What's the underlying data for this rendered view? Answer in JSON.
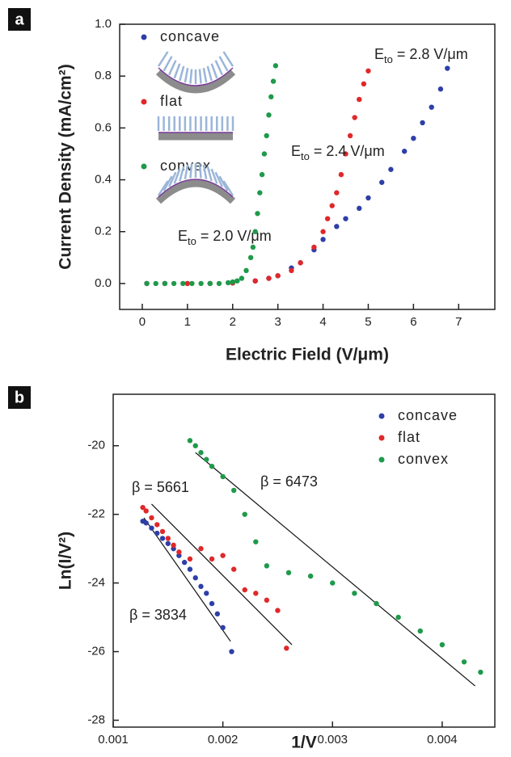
{
  "chart_data": [
    {
      "type": "scatter",
      "panel_label": "a",
      "xlabel": "Electric Field (V/μm)",
      "ylabel": "Current Density (mA/cm²)",
      "xlim": [
        -0.5,
        7.8
      ],
      "xticks": [
        0,
        1,
        2,
        3,
        4,
        5,
        6,
        7
      ],
      "ylim": [
        -0.1,
        1.0
      ],
      "yticks": [
        {
          "value": 0,
          "label": "0.0"
        },
        {
          "value": 0.2,
          "label": "0.2"
        },
        {
          "value": 0.4,
          "label": "0.4"
        },
        {
          "value": 0.6,
          "label": "0.6"
        },
        {
          "value": 0.8,
          "label": "0.8"
        },
        {
          "value": 1.0,
          "label": "1.0"
        }
      ],
      "legend": "upper left",
      "series": [
        {
          "name": "concave",
          "color": "#2e3fa8",
          "x": [
            0.1,
            0.5,
            1.0,
            1.5,
            2.0,
            2.5,
            2.8,
            3.0,
            3.3,
            3.5,
            3.8,
            4.0,
            4.3,
            4.5,
            4.8,
            5.0,
            5.3,
            5.5,
            5.8,
            6.0,
            6.2,
            6.4,
            6.6,
            6.75
          ],
          "values": [
            0,
            0,
            0,
            0,
            0.002,
            0.01,
            0.02,
            0.03,
            0.06,
            0.08,
            0.13,
            0.17,
            0.22,
            0.25,
            0.29,
            0.33,
            0.39,
            0.44,
            0.51,
            0.56,
            0.62,
            0.68,
            0.75,
            0.83
          ]
        },
        {
          "name": "flat",
          "color": "#e0282a",
          "x": [
            0.1,
            0.5,
            1.0,
            1.5,
            2.0,
            2.5,
            2.8,
            3.0,
            3.3,
            3.5,
            3.8,
            4.0,
            4.1,
            4.2,
            4.3,
            4.4,
            4.5,
            4.6,
            4.7,
            4.8,
            4.9,
            5.0
          ],
          "values": [
            0,
            0,
            0,
            0,
            0.002,
            0.01,
            0.02,
            0.03,
            0.05,
            0.08,
            0.14,
            0.2,
            0.25,
            0.3,
            0.35,
            0.42,
            0.5,
            0.57,
            0.64,
            0.71,
            0.77,
            0.82
          ]
        },
        {
          "name": "convex",
          "color": "#1e9a4a",
          "x": [
            0.1,
            0.3,
            0.5,
            0.7,
            0.9,
            1.1,
            1.3,
            1.5,
            1.7,
            1.9,
            2.0,
            2.1,
            2.2,
            2.3,
            2.4,
            2.45,
            2.5,
            2.55,
            2.6,
            2.65,
            2.7,
            2.75,
            2.8,
            2.85,
            2.9,
            2.95
          ],
          "values": [
            0,
            0,
            0,
            0,
            0,
            0,
            0,
            0,
            0,
            0.003,
            0.006,
            0.01,
            0.02,
            0.05,
            0.1,
            0.14,
            0.2,
            0.27,
            0.35,
            0.42,
            0.5,
            0.57,
            0.65,
            0.72,
            0.78,
            0.84
          ]
        }
      ],
      "annotations": [
        {
          "symbol": "E",
          "subscript": "to",
          "text": " = 2.8 V/μm"
        },
        {
          "symbol": "E",
          "subscript": "to",
          "text": " = 2.4 V/μm"
        },
        {
          "symbol": "E",
          "subscript": "to",
          "text": " = 2.0 V/μm"
        }
      ]
    },
    {
      "type": "scatter",
      "panel_label": "b",
      "xlabel": "1/V",
      "ylabel": "Ln(I/V²)",
      "xlim": [
        0.001,
        0.00448
      ],
      "xticks": [
        0.001,
        0.002,
        0.003,
        0.004
      ],
      "ylim": [
        -28.2,
        -18.5
      ],
      "yticks": [
        -28,
        -26,
        -24,
        -22,
        -20
      ],
      "legend": "upper right",
      "series": [
        {
          "name": "concave",
          "color": "#2e3fa8",
          "x": [
            0.00127,
            0.0013,
            0.00135,
            0.0014,
            0.00145,
            0.0015,
            0.00155,
            0.0016,
            0.00165,
            0.0017,
            0.00175,
            0.0018,
            0.00185,
            0.0019,
            0.00195,
            0.002,
            0.00208
          ],
          "values": [
            -22.2,
            -22.25,
            -22.4,
            -22.55,
            -22.7,
            -22.85,
            -23.0,
            -23.2,
            -23.4,
            -23.6,
            -23.85,
            -24.1,
            -24.3,
            -24.6,
            -24.9,
            -25.3,
            -26.0
          ]
        },
        {
          "name": "flat",
          "color": "#e0282a",
          "x": [
            0.00127,
            0.0013,
            0.00135,
            0.0014,
            0.00145,
            0.0015,
            0.00155,
            0.0016,
            0.0017,
            0.0018,
            0.0019,
            0.002,
            0.0021,
            0.0022,
            0.0023,
            0.0024,
            0.0025,
            0.00258
          ],
          "values": [
            -21.8,
            -21.9,
            -22.1,
            -22.3,
            -22.5,
            -22.7,
            -22.9,
            -23.1,
            -23.3,
            -23.0,
            -23.3,
            -23.2,
            -23.6,
            -24.2,
            -24.3,
            -24.5,
            -24.8,
            -25.9
          ]
        },
        {
          "name": "convex",
          "color": "#1e9a4a",
          "x": [
            0.0017,
            0.00175,
            0.0018,
            0.00185,
            0.0019,
            0.002,
            0.0021,
            0.0022,
            0.0023,
            0.0024,
            0.0026,
            0.0028,
            0.003,
            0.0032,
            0.0034,
            0.0036,
            0.0038,
            0.004,
            0.0042,
            0.00435
          ],
          "values": [
            -19.85,
            -20.0,
            -20.2,
            -20.4,
            -20.6,
            -20.9,
            -21.3,
            -22.0,
            -22.8,
            -23.5,
            -23.7,
            -23.8,
            -24.0,
            -24.3,
            -24.6,
            -25.0,
            -25.4,
            -25.8,
            -26.3,
            -26.6
          ]
        }
      ],
      "fit_lines": [
        {
          "x": [
            0.00128,
            0.00207
          ],
          "y": [
            -22.1,
            -25.7
          ]
        },
        {
          "x": [
            0.00135,
            0.00263
          ],
          "y": [
            -21.7,
            -25.8
          ]
        },
        {
          "x": [
            0.00175,
            0.0043
          ],
          "y": [
            -20.2,
            -27.0
          ]
        }
      ],
      "annotations": [
        "β = 5661",
        "β = 6473",
        "β = 3834"
      ]
    }
  ]
}
